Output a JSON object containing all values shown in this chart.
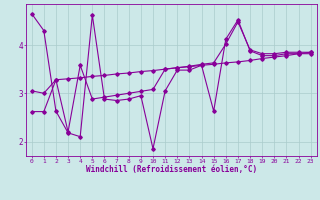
{
  "background_color": "#cce8e8",
  "grid_color": "#aacccc",
  "line_color_main": "#880099",
  "xlabel": "Windchill (Refroidissement éolien,°C)",
  "xlim": [
    -0.5,
    23.5
  ],
  "ylim": [
    1.7,
    4.85
  ],
  "yticks": [
    2,
    3,
    4
  ],
  "xticks": [
    0,
    1,
    2,
    3,
    4,
    5,
    6,
    7,
    8,
    9,
    10,
    11,
    12,
    13,
    14,
    15,
    16,
    17,
    18,
    19,
    20,
    21,
    22,
    23
  ],
  "series1_x": [
    0,
    1,
    2,
    3,
    4,
    5,
    6,
    7,
    8,
    9,
    10,
    11,
    12,
    13,
    14,
    15,
    16,
    17,
    18,
    19,
    20,
    21,
    22,
    23
  ],
  "series1_y": [
    4.65,
    4.3,
    2.63,
    2.18,
    2.1,
    4.62,
    2.88,
    2.85,
    2.88,
    2.95,
    1.85,
    3.05,
    3.48,
    3.48,
    3.58,
    2.63,
    4.12,
    4.52,
    3.88,
    3.78,
    3.78,
    3.82,
    3.82,
    3.82
  ],
  "series2_x": [
    0,
    1,
    2,
    3,
    4,
    5,
    6,
    7,
    8,
    9,
    10,
    11,
    12,
    13,
    14,
    15,
    16,
    17,
    18,
    19,
    20,
    21,
    22,
    23
  ],
  "series2_y": [
    2.62,
    2.62,
    3.28,
    3.3,
    3.32,
    3.35,
    3.37,
    3.4,
    3.42,
    3.45,
    3.47,
    3.5,
    3.53,
    3.55,
    3.58,
    3.6,
    3.63,
    3.65,
    3.68,
    3.72,
    3.75,
    3.78,
    3.82,
    3.85
  ],
  "series3_x": [
    0,
    1,
    2,
    3,
    4,
    5,
    6,
    7,
    8,
    9,
    10,
    11,
    12,
    13,
    14,
    15,
    16,
    17,
    18,
    19,
    20,
    21,
    22,
    23
  ],
  "series3_y": [
    3.05,
    3.0,
    3.28,
    2.2,
    3.58,
    2.88,
    2.92,
    2.96,
    3.0,
    3.04,
    3.08,
    3.5,
    3.53,
    3.56,
    3.6,
    3.63,
    4.02,
    4.48,
    3.9,
    3.82,
    3.82,
    3.85,
    3.85,
    3.85
  ],
  "marker": "D",
  "markersize": 1.8,
  "linewidth": 0.8,
  "tick_fontsize": 4.5,
  "label_fontsize": 5.5
}
